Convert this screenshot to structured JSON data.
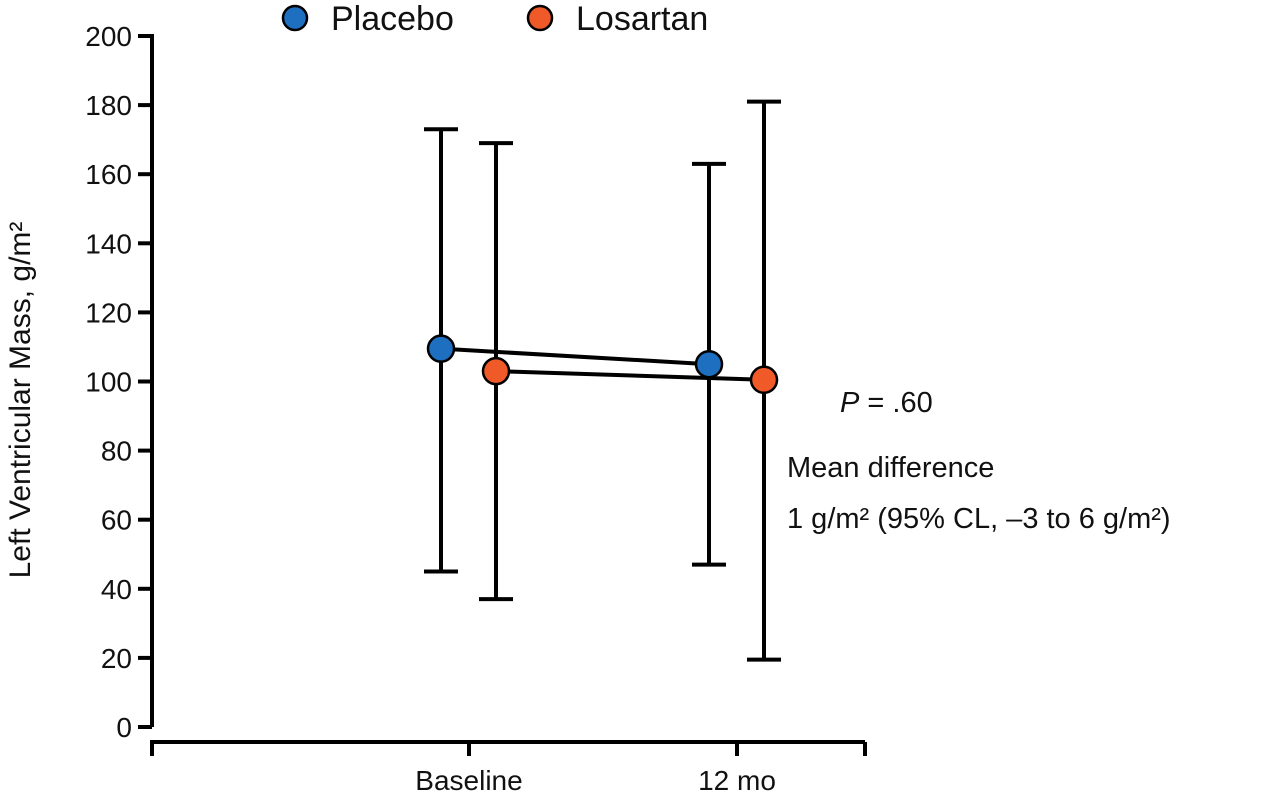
{
  "chart_data": {
    "type": "scatter",
    "title": "",
    "xlabel": "",
    "ylabel": "Left Ventricular Mass, g/m²",
    "ylim": [
      0,
      200
    ],
    "yticks": [
      0,
      20,
      40,
      60,
      80,
      100,
      120,
      140,
      160,
      180,
      200
    ],
    "categories": [
      "Baseline",
      "12 mo"
    ],
    "grid": false,
    "legend_position": "top",
    "series": [
      {
        "name": "Placebo",
        "color": "#1f6fc0",
        "values": [
          109.5,
          105
        ],
        "error_low": [
          45,
          47
        ],
        "error_high": [
          173,
          163
        ]
      },
      {
        "name": "Losartan",
        "color": "#f05a28",
        "values": [
          103,
          100.5
        ],
        "error_low": [
          37,
          19.5
        ],
        "error_high": [
          169,
          181
        ]
      }
    ],
    "annotations": {
      "p_label": "P",
      "p_value": " = .60",
      "line1": "Mean difference",
      "line2": "1 g/m² (95% CL, –3 to 6 g/m²)"
    }
  }
}
